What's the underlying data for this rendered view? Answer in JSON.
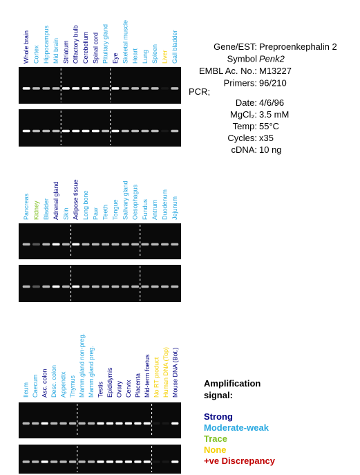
{
  "panels": [
    {
      "lanes": [
        {
          "label": "Whole brain",
          "color": "#000080"
        },
        {
          "label": "Cortex",
          "color": "#29a8e0"
        },
        {
          "label": "Hippocampus",
          "color": "#29a8e0"
        },
        {
          "label": "Mid brain",
          "color": "#29a8e0"
        },
        {
          "label": "Striatum",
          "color": "#000080"
        },
        {
          "label": "Olfactory bulb",
          "color": "#000080"
        },
        {
          "label": "Cerebellum",
          "color": "#000080"
        },
        {
          "label": "Spinal cord",
          "color": "#000080"
        },
        {
          "label": "Pituitary gland",
          "color": "#29a8e0"
        },
        {
          "label": "Eye",
          "color": "#000080"
        },
        {
          "label": "Skeletal muscle",
          "color": "#29a8e0"
        },
        {
          "label": "Heart",
          "color": "#29a8e0"
        },
        {
          "label": "Lung",
          "color": "#29a8e0"
        },
        {
          "label": "Spleen",
          "color": "#29a8e0"
        },
        {
          "label": "Liver",
          "color": "#f5d000"
        },
        {
          "label": "Gall bladder",
          "color": "#29a8e0"
        }
      ]
    },
    {
      "lanes": [
        {
          "label": "Pancreas",
          "color": "#29a8e0"
        },
        {
          "label": "Kidney",
          "color": "#80c020"
        },
        {
          "label": "Bladder",
          "color": "#29a8e0"
        },
        {
          "label": "Adrenal gland",
          "color": "#000080"
        },
        {
          "label": "Skin",
          "color": "#29a8e0"
        },
        {
          "label": "Adipose tissue",
          "color": "#000080"
        },
        {
          "label": "Long bone",
          "color": "#29a8e0"
        },
        {
          "label": "Paw",
          "color": "#29a8e0"
        },
        {
          "label": "Teeth",
          "color": "#29a8e0"
        },
        {
          "label": "Tongue",
          "color": "#29a8e0"
        },
        {
          "label": "Salivary gland",
          "color": "#29a8e0"
        },
        {
          "label": "Oesophagus",
          "color": "#29a8e0"
        },
        {
          "label": "Fundus",
          "color": "#29a8e0"
        },
        {
          "label": "Antrum",
          "color": "#29a8e0"
        },
        {
          "label": "Duodenum",
          "color": "#29a8e0"
        },
        {
          "label": "Jejunum",
          "color": "#29a8e0"
        }
      ]
    },
    {
      "lanes": [
        {
          "label": "Ileum",
          "color": "#29a8e0"
        },
        {
          "label": "Caecum",
          "color": "#29a8e0"
        },
        {
          "label": "Asc. colon",
          "color": "#000080"
        },
        {
          "label": "Desc. colon",
          "color": "#29a8e0"
        },
        {
          "label": "Appendix",
          "color": "#29a8e0"
        },
        {
          "label": "Thymus",
          "color": "#29a8e0"
        },
        {
          "label": "Mamm.gland non-preg.",
          "color": "#29a8e0"
        },
        {
          "label": "Mamm.gland preg.",
          "color": "#29a8e0"
        },
        {
          "label": "Testis",
          "color": "#000080"
        },
        {
          "label": "Epididymis",
          "color": "#000080"
        },
        {
          "label": "Ovary",
          "color": "#000080"
        },
        {
          "label": "Cervix",
          "color": "#000080"
        },
        {
          "label": "Placenta",
          "color": "#000080"
        },
        {
          "label": "Mid-term foetus",
          "color": "#000080"
        },
        {
          "label": "No RT product",
          "color": "#f5d000"
        },
        {
          "label": "Human DNA (Top)",
          "color": "#f5d000"
        },
        {
          "label": "Mouse DNA (Bot.)",
          "color": "#000080"
        }
      ]
    }
  ],
  "info": {
    "rows1": [
      {
        "label": "Gene/EST:",
        "value": "Preproenkephalin 2"
      },
      {
        "label": "Symbol",
        "value": "Penk2",
        "italic": true
      },
      {
        "label": "EMBL Ac. No.:",
        "value": "M13227"
      },
      {
        "label": "Primers:",
        "value": "96/210"
      }
    ],
    "pcr": "PCR;",
    "rows2": [
      {
        "label": "Date:",
        "value": "4/6/96"
      },
      {
        "label": "MgCl₂:",
        "value": "3.5 mM"
      },
      {
        "label": "Temp:",
        "value": "55°C"
      },
      {
        "label": "Cycles:",
        "value": "x35"
      },
      {
        "label": "cDNA:",
        "value": "10 ng"
      }
    ]
  },
  "legend": {
    "title_lines": [
      "Amplification",
      "signal:"
    ],
    "items": [
      {
        "label": "Strong",
        "color": "#000080"
      },
      {
        "label": "Moderate-weak",
        "color": "#29a8e0"
      },
      {
        "label": "Trace",
        "color": "#80c020"
      },
      {
        "label": "None",
        "color": "#f5d000"
      },
      {
        "label": "+ve Discrepancy",
        "color": "#c00000"
      }
    ]
  }
}
